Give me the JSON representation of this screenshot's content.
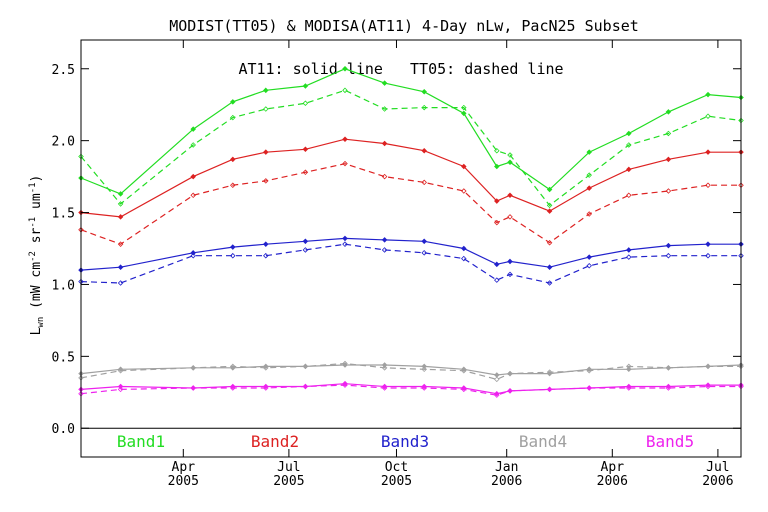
{
  "chart_data": {
    "type": "line",
    "title": "MODIST(TT05) & MODISA(AT11) 4-Day nLw, PacN25 Subset",
    "annotation": "AT11: solid line   TT05: dashed line",
    "ylabel": {
      "main": "L",
      "sub": "wn",
      "units": " (mW cm",
      "exp1": "-2",
      "mid": " sr",
      "exp2": "-1",
      "end": " um",
      "exp3": "-1",
      "close": ")"
    },
    "xlim": [
      0,
      100
    ],
    "ylim": [
      -0.2,
      2.7
    ],
    "yticks": [
      0.0,
      0.5,
      1.0,
      1.5,
      2.0,
      2.5
    ],
    "ytick_labels": [
      "0.0",
      "0.5",
      "1.0",
      "1.5",
      "2.0",
      "2.5"
    ],
    "xticks": [
      {
        "x": 15.5,
        "month": "Apr",
        "year": "2005"
      },
      {
        "x": 31.5,
        "month": "Jul",
        "year": "2005"
      },
      {
        "x": 47.8,
        "month": "Oct",
        "year": "2005"
      },
      {
        "x": 64.5,
        "month": "Jan",
        "year": "2006"
      },
      {
        "x": 80.5,
        "month": "Apr",
        "year": "2006"
      },
      {
        "x": 96.5,
        "month": "Jul",
        "year": "2006"
      }
    ],
    "zero_line": 0.0,
    "legend": {
      "placement": "bottom",
      "entries": [
        "Band1",
        "Band2",
        "Band3",
        "Band4",
        "Band5"
      ]
    },
    "x": [
      0,
      6,
      17,
      23,
      28,
      34,
      40,
      46,
      52,
      58,
      63,
      65,
      71,
      77,
      83,
      89,
      95,
      100
    ],
    "series": [
      {
        "name": "Band1",
        "color": "#22dd22",
        "solid": [
          1.74,
          1.63,
          2.08,
          2.27,
          2.35,
          2.38,
          2.5,
          2.4,
          2.34,
          2.19,
          1.82,
          1.85,
          1.66,
          1.92,
          2.05,
          2.2,
          2.32,
          2.3
        ],
        "dashed": [
          1.89,
          1.56,
          1.97,
          2.16,
          2.22,
          2.26,
          2.35,
          2.22,
          2.23,
          2.23,
          1.93,
          1.9,
          1.55,
          1.76,
          1.97,
          2.05,
          2.17,
          2.14
        ]
      },
      {
        "name": "Band2",
        "color": "#dd2222",
        "solid": [
          1.5,
          1.47,
          1.75,
          1.87,
          1.92,
          1.94,
          2.01,
          1.98,
          1.93,
          1.82,
          1.58,
          1.62,
          1.51,
          1.67,
          1.8,
          1.87,
          1.92,
          1.92
        ],
        "dashed": [
          1.38,
          1.28,
          1.62,
          1.69,
          1.72,
          1.78,
          1.84,
          1.75,
          1.71,
          1.65,
          1.43,
          1.47,
          1.29,
          1.49,
          1.62,
          1.65,
          1.69,
          1.69
        ]
      },
      {
        "name": "Band3",
        "color": "#2222cc",
        "solid": [
          1.1,
          1.12,
          1.22,
          1.26,
          1.28,
          1.3,
          1.32,
          1.31,
          1.3,
          1.25,
          1.14,
          1.16,
          1.12,
          1.19,
          1.24,
          1.27,
          1.28,
          1.28
        ],
        "dashed": [
          1.02,
          1.01,
          1.2,
          1.2,
          1.2,
          1.24,
          1.28,
          1.24,
          1.22,
          1.18,
          1.03,
          1.07,
          1.01,
          1.13,
          1.19,
          1.2,
          1.2,
          1.2
        ]
      },
      {
        "name": "Band4",
        "color": "#a0a0a0",
        "solid": [
          0.38,
          0.41,
          0.42,
          0.42,
          0.43,
          0.43,
          0.44,
          0.44,
          0.43,
          0.41,
          0.37,
          0.38,
          0.38,
          0.41,
          0.41,
          0.42,
          0.43,
          0.44
        ],
        "dashed": [
          0.35,
          0.4,
          0.42,
          0.43,
          0.42,
          0.43,
          0.45,
          0.42,
          0.41,
          0.4,
          0.34,
          0.38,
          0.39,
          0.4,
          0.43,
          0.42,
          0.43,
          0.43
        ]
      },
      {
        "name": "Band5",
        "color": "#ee22ee",
        "solid": [
          0.27,
          0.29,
          0.28,
          0.29,
          0.29,
          0.29,
          0.31,
          0.29,
          0.29,
          0.28,
          0.24,
          0.26,
          0.27,
          0.28,
          0.29,
          0.29,
          0.3,
          0.3
        ],
        "dashed": [
          0.24,
          0.27,
          0.28,
          0.28,
          0.28,
          0.29,
          0.3,
          0.28,
          0.28,
          0.27,
          0.23,
          0.26,
          0.27,
          0.28,
          0.28,
          0.28,
          0.29,
          0.29
        ]
      }
    ]
  }
}
